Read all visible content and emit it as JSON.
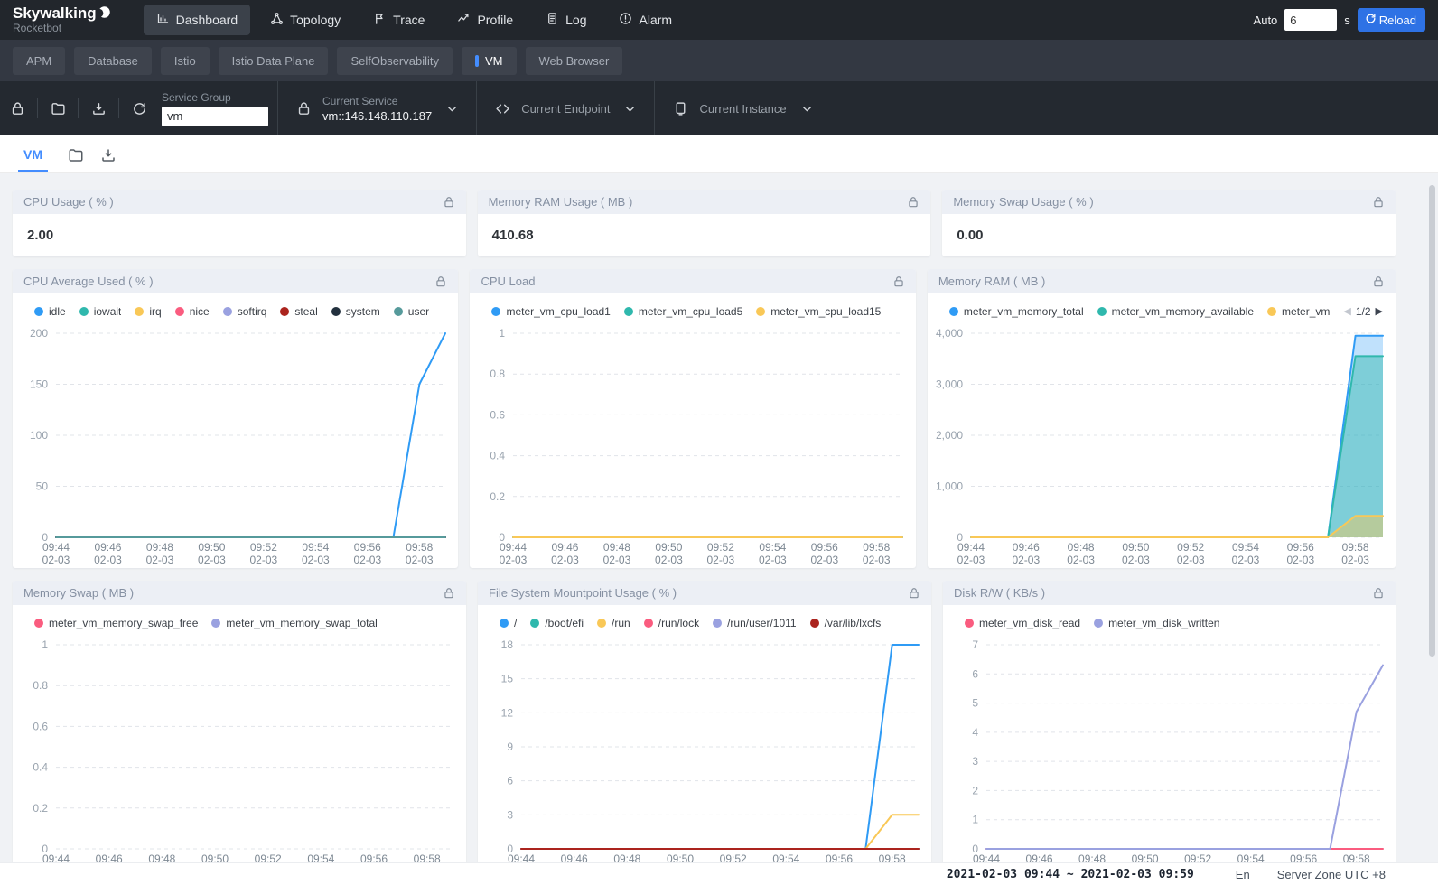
{
  "navbar": {
    "logo_title": "Skywalking",
    "logo_subtitle": "Rocketbot",
    "items": [
      {
        "label": "Dashboard",
        "icon": "dashboard-icon",
        "active": true
      },
      {
        "label": "Topology",
        "icon": "topology-icon",
        "active": false
      },
      {
        "label": "Trace",
        "icon": "trace-icon",
        "active": false
      },
      {
        "label": "Profile",
        "icon": "profile-icon",
        "active": false
      },
      {
        "label": "Log",
        "icon": "log-icon",
        "active": false
      },
      {
        "label": "Alarm",
        "icon": "alarm-icon",
        "active": false
      }
    ],
    "auto_label": "Auto",
    "auto_value": "6",
    "auto_unit": "s",
    "reload_label": "Reload"
  },
  "dashboard_tabs": [
    {
      "label": "APM",
      "active": false
    },
    {
      "label": "Database",
      "active": false
    },
    {
      "label": "Istio",
      "active": false
    },
    {
      "label": "Istio Data Plane",
      "active": false
    },
    {
      "label": "SelfObservability",
      "active": false
    },
    {
      "label": "VM",
      "active": true
    },
    {
      "label": "Web Browser",
      "active": false
    }
  ],
  "toolbar": {
    "service_group_label": "Service Group",
    "service_group_value": "vm",
    "selectors": [
      {
        "icon": "lock-icon",
        "label": "Current Service",
        "value": "vm::146.148.110.187"
      },
      {
        "icon": "endpoint-icon",
        "label": "Current Endpoint",
        "value": ""
      },
      {
        "icon": "instance-icon",
        "label": "Current Instance",
        "value": ""
      }
    ]
  },
  "view_tab": "VM",
  "stat_cards": [
    {
      "title": "CPU Usage ( % )",
      "value": "2.00"
    },
    {
      "title": "Memory RAM Usage ( MB )",
      "value": "410.68"
    },
    {
      "title": "Memory Swap Usage ( % )",
      "value": "0.00"
    }
  ],
  "footer": {
    "time_range": "2021-02-03 09:44 ~ 2021-02-03 09:59",
    "lang": "En",
    "server_zone": "Server Zone UTC +8"
  },
  "chart_data": [
    {
      "type": "line",
      "title": "CPU Average Used ( % )",
      "x": [
        "09:44",
        "09:45",
        "09:46",
        "09:47",
        "09:48",
        "09:49",
        "09:50",
        "09:51",
        "09:52",
        "09:53",
        "09:54",
        "09:55",
        "09:56",
        "09:57",
        "09:58",
        "09:59"
      ],
      "x_date": "02-03",
      "tick_every": 2,
      "ylim": [
        0,
        200
      ],
      "yticks": [
        0,
        50,
        100,
        150,
        200
      ],
      "grid": true,
      "legend_position": "top",
      "series": [
        {
          "name": "idle",
          "color": "#2f9bf5",
          "values": [
            0,
            0,
            0,
            0,
            0,
            0,
            0,
            0,
            0,
            0,
            0,
            0,
            0,
            0,
            150,
            200
          ]
        },
        {
          "name": "iowait",
          "color": "#2fb8ad",
          "values": [
            0,
            0,
            0,
            0,
            0,
            0,
            0,
            0,
            0,
            0,
            0,
            0,
            0,
            0,
            0,
            0
          ]
        },
        {
          "name": "irq",
          "color": "#f9c857",
          "values": [
            0,
            0,
            0,
            0,
            0,
            0,
            0,
            0,
            0,
            0,
            0,
            0,
            0,
            0,
            0,
            0
          ]
        },
        {
          "name": "nice",
          "color": "#fa5c7f",
          "values": [
            0,
            0,
            0,
            0,
            0,
            0,
            0,
            0,
            0,
            0,
            0,
            0,
            0,
            0,
            0,
            0
          ]
        },
        {
          "name": "softirq",
          "color": "#9aa1e0",
          "values": [
            0,
            0,
            0,
            0,
            0,
            0,
            0,
            0,
            0,
            0,
            0,
            0,
            0,
            0,
            0,
            0
          ]
        },
        {
          "name": "steal",
          "color": "#ab241e",
          "values": [
            0,
            0,
            0,
            0,
            0,
            0,
            0,
            0,
            0,
            0,
            0,
            0,
            0,
            0,
            0,
            0
          ]
        },
        {
          "name": "system",
          "color": "#22303e",
          "values": [
            0,
            0,
            0,
            0,
            0,
            0,
            0,
            0,
            0,
            0,
            0,
            0,
            0,
            0,
            0,
            0
          ]
        },
        {
          "name": "user",
          "color": "#569a9b",
          "values": [
            0,
            0,
            0,
            0,
            0,
            0,
            0,
            0,
            0,
            0,
            0,
            0,
            0,
            0,
            0,
            0
          ]
        }
      ]
    },
    {
      "type": "line",
      "title": "CPU Load",
      "x": [
        "09:44",
        "09:45",
        "09:46",
        "09:47",
        "09:48",
        "09:49",
        "09:50",
        "09:51",
        "09:52",
        "09:53",
        "09:54",
        "09:55",
        "09:56",
        "09:57",
        "09:58",
        "09:59"
      ],
      "x_date": "02-03",
      "tick_every": 2,
      "ylim": [
        0,
        1
      ],
      "yticks": [
        0,
        0.2,
        0.4,
        0.6,
        0.8,
        1
      ],
      "grid": true,
      "legend_position": "top",
      "series": [
        {
          "name": "meter_vm_cpu_load1",
          "color": "#2f9bf5",
          "values": [
            0,
            0,
            0,
            0,
            0,
            0,
            0,
            0,
            0,
            0,
            0,
            0,
            0,
            0,
            0,
            0
          ]
        },
        {
          "name": "meter_vm_cpu_load5",
          "color": "#2fb8ad",
          "values": [
            0,
            0,
            0,
            0,
            0,
            0,
            0,
            0,
            0,
            0,
            0,
            0,
            0,
            0,
            0,
            0
          ]
        },
        {
          "name": "meter_vm_cpu_load15",
          "color": "#f9c857",
          "values": [
            0,
            0,
            0,
            0,
            0,
            0,
            0,
            0,
            0,
            0,
            0,
            0,
            0,
            0,
            0,
            0
          ]
        }
      ]
    },
    {
      "type": "area",
      "title": "Memory RAM ( MB )",
      "x": [
        "09:44",
        "09:45",
        "09:46",
        "09:47",
        "09:48",
        "09:49",
        "09:50",
        "09:51",
        "09:52",
        "09:53",
        "09:54",
        "09:55",
        "09:56",
        "09:57",
        "09:58",
        "09:59"
      ],
      "x_date": "02-03",
      "tick_every": 2,
      "ylim": [
        0,
        4000
      ],
      "yticks": [
        0,
        1000,
        2000,
        3000,
        4000
      ],
      "grid": true,
      "legend_position": "top",
      "legend_pager": "1/2",
      "series": [
        {
          "name": "meter_vm_memory_total",
          "color": "#2f9bf5",
          "fill": 0.3,
          "values": [
            0,
            0,
            0,
            0,
            0,
            0,
            0,
            0,
            0,
            0,
            0,
            0,
            0,
            0,
            3950,
            3950
          ]
        },
        {
          "name": "meter_vm_memory_available",
          "color": "#2fb8ad",
          "fill": 0.45,
          "values": [
            0,
            0,
            0,
            0,
            0,
            0,
            0,
            0,
            0,
            0,
            0,
            0,
            0,
            0,
            3550,
            3550
          ]
        },
        {
          "name": "meter_vm",
          "color": "#f9c857",
          "fill": 0.45,
          "values": [
            0,
            0,
            0,
            0,
            0,
            0,
            0,
            0,
            0,
            0,
            0,
            0,
            0,
            0,
            420,
            420
          ]
        }
      ]
    },
    {
      "type": "line",
      "title": "Memory Swap ( MB )",
      "x": [
        "09:44",
        "09:45",
        "09:46",
        "09:47",
        "09:48",
        "09:49",
        "09:50",
        "09:51",
        "09:52",
        "09:53",
        "09:54",
        "09:55",
        "09:56",
        "09:57",
        "09:58",
        "09:59"
      ],
      "x_date": "02-03",
      "tick_every": 2,
      "ylim": [
        0,
        1
      ],
      "yticks": [
        0,
        0.2,
        0.4,
        0.6,
        0.8,
        1
      ],
      "grid": true,
      "legend_position": "top",
      "series": [
        {
          "name": "meter_vm_memory_swap_free",
          "color": "#fa5c7f",
          "values": []
        },
        {
          "name": "meter_vm_memory_swap_total",
          "color": "#9aa1e0",
          "values": []
        }
      ]
    },
    {
      "type": "line",
      "title": "File System Mountpoint Usage ( % )",
      "x": [
        "09:44",
        "09:45",
        "09:46",
        "09:47",
        "09:48",
        "09:49",
        "09:50",
        "09:51",
        "09:52",
        "09:53",
        "09:54",
        "09:55",
        "09:56",
        "09:57",
        "09:58",
        "09:59"
      ],
      "x_date": "02-03",
      "tick_every": 2,
      "ylim": [
        0,
        18
      ],
      "yticks": [
        0,
        3,
        6,
        9,
        12,
        15,
        18
      ],
      "grid": true,
      "legend_position": "top",
      "series": [
        {
          "name": "/",
          "color": "#2f9bf5",
          "values": [
            0,
            0,
            0,
            0,
            0,
            0,
            0,
            0,
            0,
            0,
            0,
            0,
            0,
            0,
            18,
            18
          ]
        },
        {
          "name": "/boot/efi",
          "color": "#2fb8ad",
          "values": [
            0,
            0,
            0,
            0,
            0,
            0,
            0,
            0,
            0,
            0,
            0,
            0,
            0,
            0,
            0,
            0
          ]
        },
        {
          "name": "/run",
          "color": "#f9c857",
          "values": [
            0,
            0,
            0,
            0,
            0,
            0,
            0,
            0,
            0,
            0,
            0,
            0,
            0,
            0,
            3,
            3
          ]
        },
        {
          "name": "/run/lock",
          "color": "#fa5c7f",
          "values": [
            0,
            0,
            0,
            0,
            0,
            0,
            0,
            0,
            0,
            0,
            0,
            0,
            0,
            0,
            0,
            0
          ]
        },
        {
          "name": "/run/user/1011",
          "color": "#9aa1e0",
          "values": [
            0,
            0,
            0,
            0,
            0,
            0,
            0,
            0,
            0,
            0,
            0,
            0,
            0,
            0,
            0,
            0
          ]
        },
        {
          "name": "/var/lib/lxcfs",
          "color": "#ab241e",
          "values": [
            0,
            0,
            0,
            0,
            0,
            0,
            0,
            0,
            0,
            0,
            0,
            0,
            0,
            0,
            0,
            0
          ]
        }
      ]
    },
    {
      "type": "line",
      "title": "Disk R/W ( KB/s )",
      "x": [
        "09:44",
        "09:45",
        "09:46",
        "09:47",
        "09:48",
        "09:49",
        "09:50",
        "09:51",
        "09:52",
        "09:53",
        "09:54",
        "09:55",
        "09:56",
        "09:57",
        "09:58",
        "09:59"
      ],
      "x_date": "02-03",
      "tick_every": 2,
      "ylim": [
        0,
        7
      ],
      "yticks": [
        0,
        1,
        2,
        3,
        4,
        5,
        6,
        7
      ],
      "grid": true,
      "legend_position": "top",
      "series": [
        {
          "name": "meter_vm_disk_read",
          "color": "#fa5c7f",
          "values": [
            0,
            0,
            0,
            0,
            0,
            0,
            0,
            0,
            0,
            0,
            0,
            0,
            0,
            0,
            0,
            0
          ]
        },
        {
          "name": "meter_vm_disk_written",
          "color": "#9aa1e0",
          "values": [
            0,
            0,
            0,
            0,
            0,
            0,
            0,
            0,
            0,
            0,
            0,
            0,
            0,
            0,
            4.7,
            6.3
          ]
        }
      ]
    }
  ]
}
